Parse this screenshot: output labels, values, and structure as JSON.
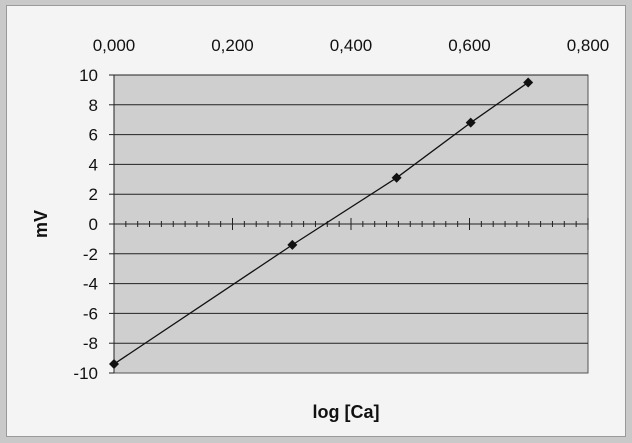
{
  "chart_data": {
    "type": "scatter",
    "title": "",
    "xlabel": "log [Ca]",
    "ylabel": "mV",
    "xlim": [
      0,
      0.8
    ],
    "ylim": [
      -10,
      10
    ],
    "x_ticks": [
      "0,000",
      "0,200",
      "0,400",
      "0,600",
      "0,800"
    ],
    "x_tick_values": [
      0,
      0.2,
      0.4,
      0.6,
      0.8
    ],
    "y_ticks": [
      "10",
      "8",
      "6",
      "4",
      "2",
      "0",
      "-2",
      "-4",
      "-6",
      "-8",
      "-10"
    ],
    "y_tick_values": [
      10,
      8,
      6,
      4,
      2,
      0,
      -2,
      -4,
      -6,
      -8,
      -10
    ],
    "x_axis_position": "top",
    "grid": "horizontal",
    "legend": "none",
    "series": [
      {
        "marker": "diamond",
        "line": "straight",
        "x": [
          0.0,
          0.301,
          0.477,
          0.602,
          0.699
        ],
        "y": [
          -9.4,
          -1.4,
          3.1,
          6.8,
          9.5
        ]
      }
    ],
    "colors": {
      "plot_bg": "#cfcfcf",
      "grid": "#222222",
      "line": "#111111",
      "marker": "#111111"
    }
  }
}
